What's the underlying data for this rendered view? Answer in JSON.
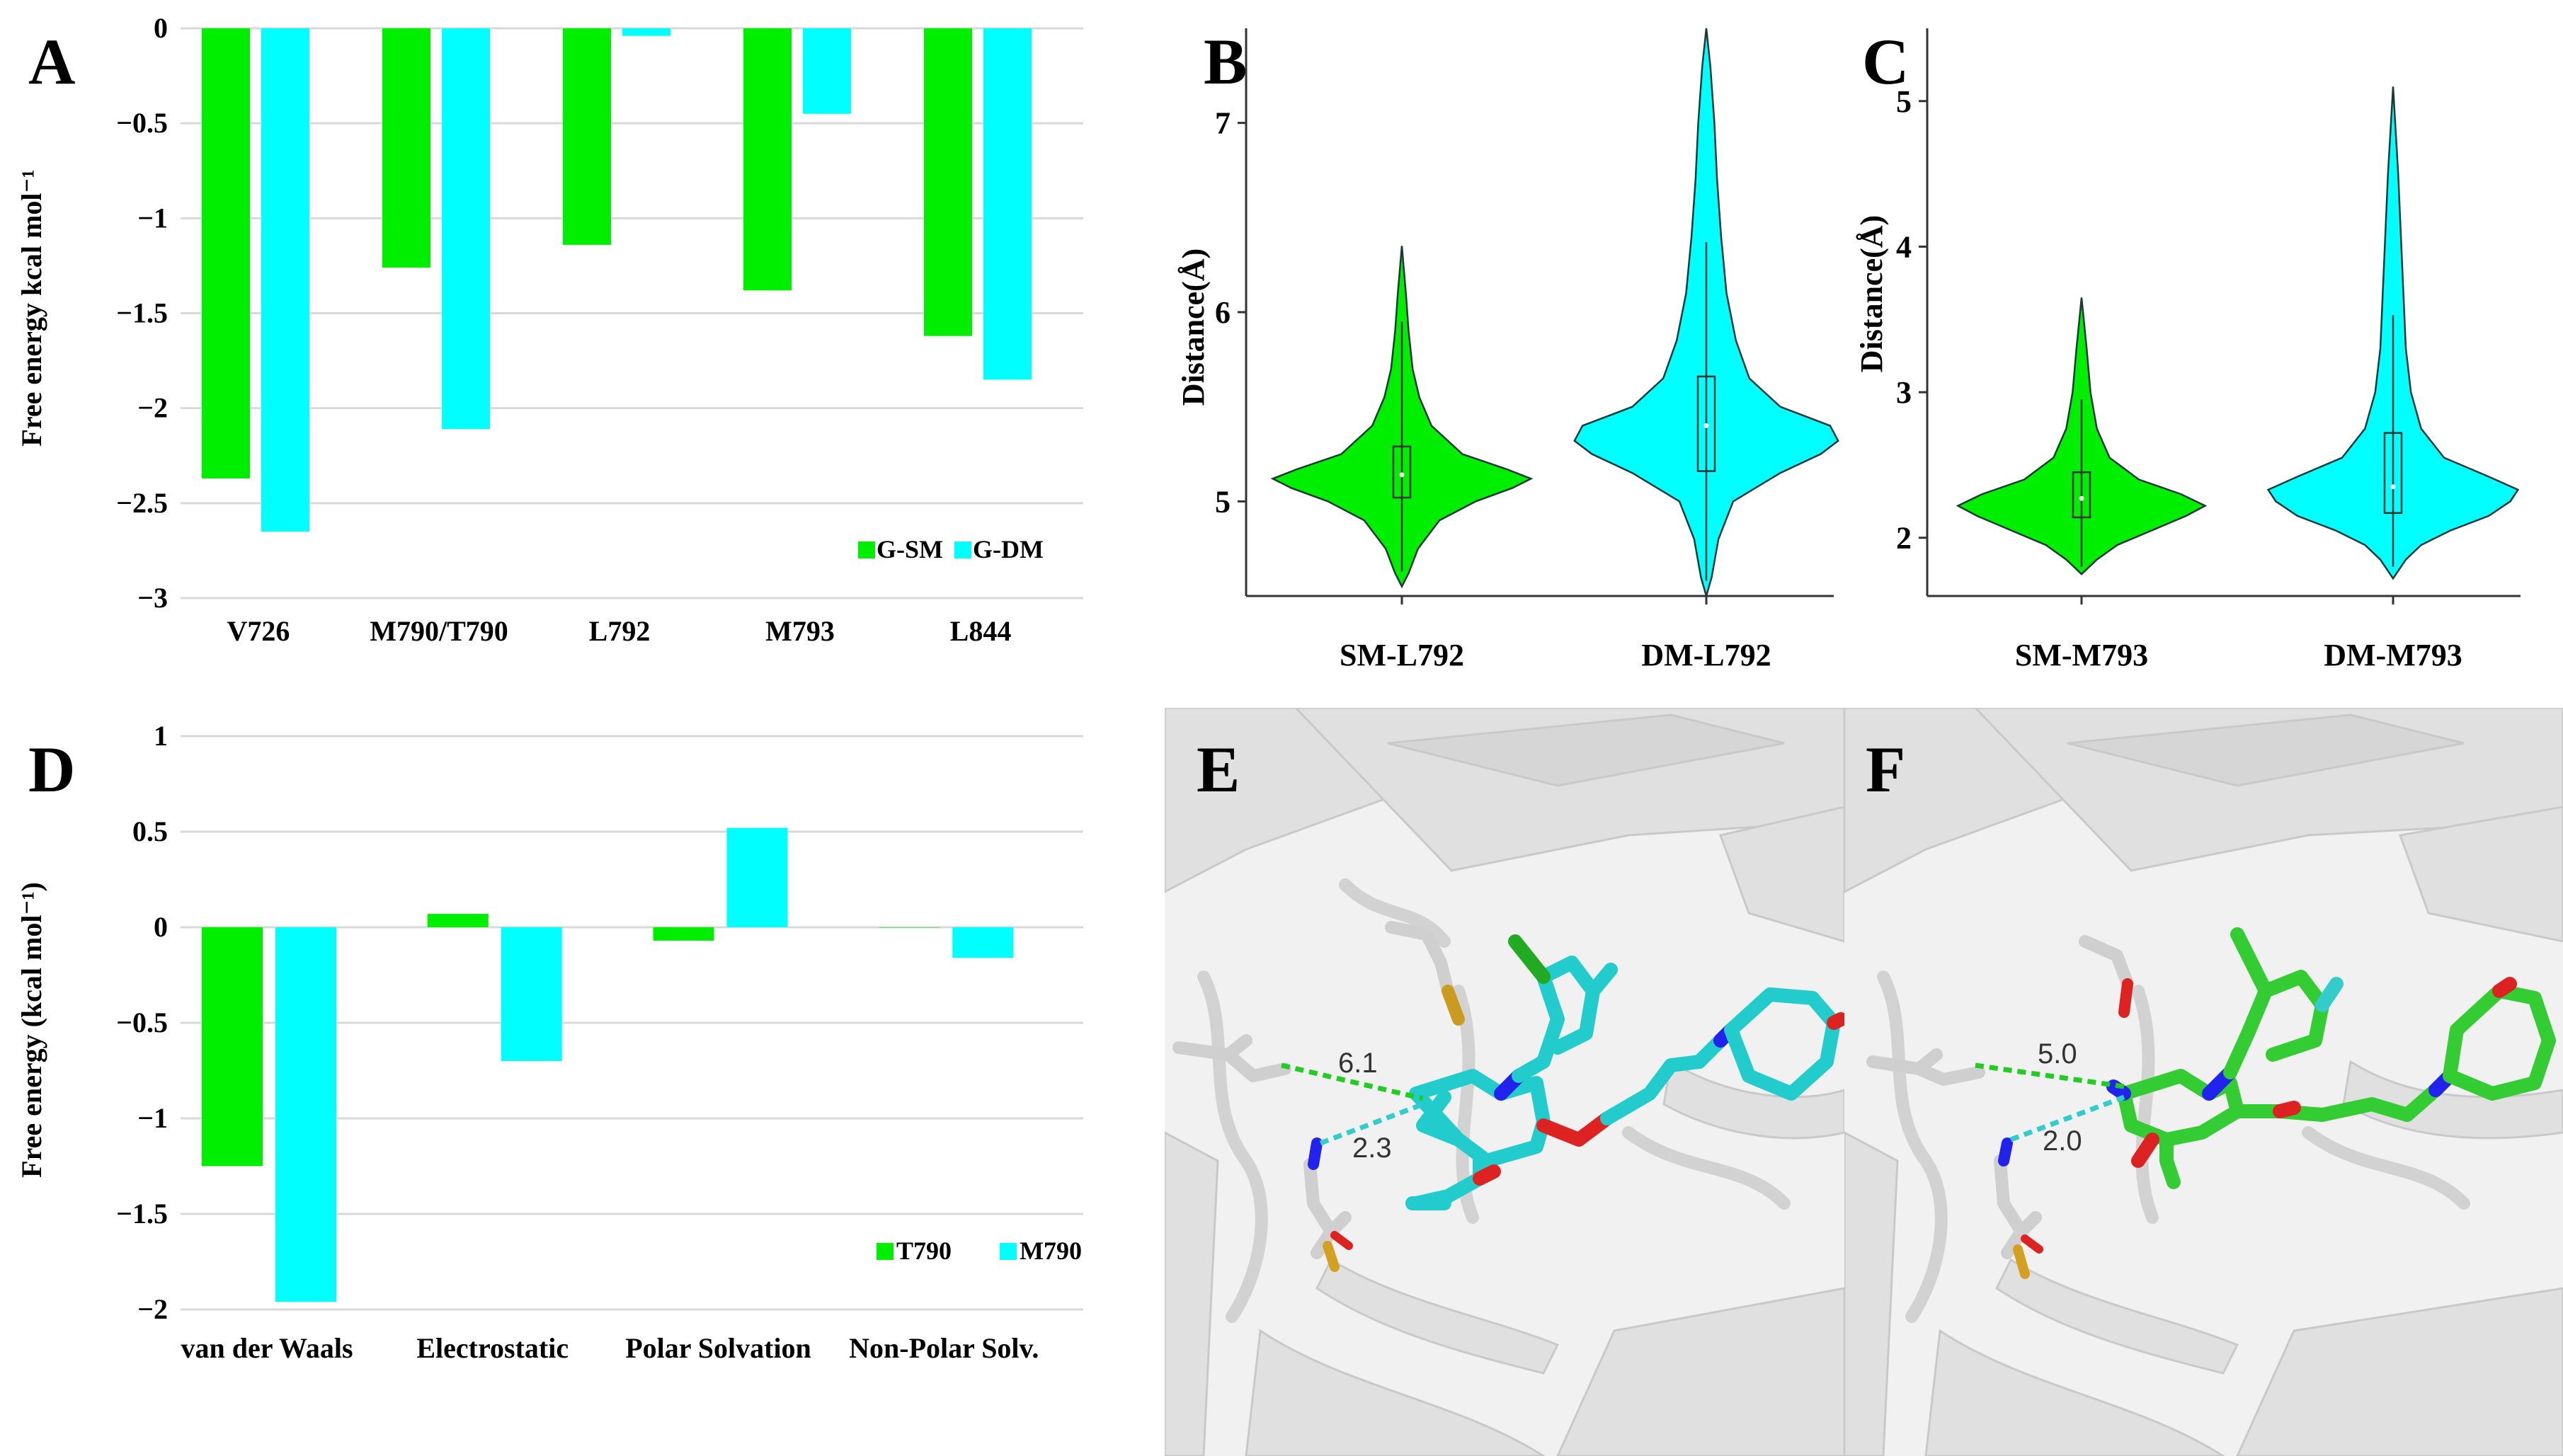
{
  "colors": {
    "green": "#00ee00",
    "cyan": "#00ffff",
    "axis": "#333333",
    "white_ribbon": "#e2e2e2"
  },
  "panel_letters": {
    "a": "A",
    "b": "B",
    "c": "C",
    "d": "D",
    "e": "E",
    "f": "F"
  },
  "chart_data": [
    {
      "panel": "A",
      "type": "bar",
      "ylabel": "Free energy kcal mol⁻¹",
      "ylim": [
        -3,
        0
      ],
      "yticks": [
        0,
        -0.5,
        -1,
        -1.5,
        -2,
        -2.5,
        -3
      ],
      "ytick_labels": [
        "0",
        "−0.5",
        "−1",
        "−1.5",
        "−2",
        "−2.5",
        "−3"
      ],
      "categories": [
        "V726",
        "M790/T790",
        "L792",
        "M793",
        "L844"
      ],
      "series": [
        {
          "name": "G-SM",
          "color": "#00ee00",
          "values": [
            -2.37,
            -1.26,
            -1.14,
            -1.38,
            -1.62
          ]
        },
        {
          "name": "G-DM",
          "color": "#00ffff",
          "values": [
            -2.65,
            -2.11,
            -0.04,
            -0.45,
            -1.85
          ]
        }
      ],
      "legend": "bottom-right"
    },
    {
      "panel": "B",
      "type": "violin",
      "ylabel": "Distance(Å)",
      "ylim": [
        4.5,
        7.5
      ],
      "yticks": [
        5,
        6,
        7
      ],
      "ytick_labels": [
        "5",
        "6",
        "7"
      ],
      "categories": [
        "SM-L792",
        "DM-L792"
      ],
      "violins": [
        {
          "name": "SM-L792",
          "color": "#00ee00",
          "min": 4.55,
          "max": 6.35,
          "q1": 5.02,
          "median": 5.14,
          "q3": 5.29,
          "whisker_low": 4.63,
          "whisker_high": 5.95,
          "profile": [
            [
              4.55,
              0.0
            ],
            [
              4.62,
              0.05
            ],
            [
              4.75,
              0.12
            ],
            [
              4.9,
              0.28
            ],
            [
              5.0,
              0.55
            ],
            [
              5.07,
              0.82
            ],
            [
              5.12,
              0.96
            ],
            [
              5.17,
              0.78
            ],
            [
              5.25,
              0.45
            ],
            [
              5.4,
              0.22
            ],
            [
              5.55,
              0.13
            ],
            [
              5.7,
              0.08
            ],
            [
              5.9,
              0.05
            ],
            [
              6.1,
              0.03
            ],
            [
              6.35,
              0.0
            ]
          ]
        },
        {
          "name": "DM-L792",
          "color": "#00ffff",
          "min": 4.5,
          "max": 7.5,
          "q1": 5.16,
          "median": 5.4,
          "q3": 5.66,
          "whisker_low": 4.58,
          "whisker_high": 6.37,
          "profile": [
            [
              4.5,
              0.0
            ],
            [
              4.6,
              0.04
            ],
            [
              4.8,
              0.09
            ],
            [
              5.0,
              0.2
            ],
            [
              5.15,
              0.55
            ],
            [
              5.25,
              0.85
            ],
            [
              5.32,
              0.98
            ],
            [
              5.4,
              0.92
            ],
            [
              5.5,
              0.55
            ],
            [
              5.65,
              0.32
            ],
            [
              5.85,
              0.22
            ],
            [
              6.1,
              0.15
            ],
            [
              6.4,
              0.11
            ],
            [
              6.7,
              0.08
            ],
            [
              7.0,
              0.06
            ],
            [
              7.3,
              0.03
            ],
            [
              7.5,
              0.0
            ]
          ]
        }
      ]
    },
    {
      "panel": "C",
      "type": "violin",
      "ylabel": "Distance(Å)",
      "ylim": [
        1.6,
        5.5
      ],
      "yticks": [
        2,
        3,
        4,
        5
      ],
      "ytick_labels": [
        "2",
        "3",
        "4",
        "5"
      ],
      "categories": [
        "SM-M793",
        "DM-M793"
      ],
      "violins": [
        {
          "name": "SM-M793",
          "color": "#00ee00",
          "min": 1.75,
          "max": 3.65,
          "q1": 2.14,
          "median": 2.27,
          "q3": 2.45,
          "whisker_low": 1.8,
          "whisker_high": 2.95,
          "profile": [
            [
              1.75,
              0.0
            ],
            [
              1.85,
              0.12
            ],
            [
              1.95,
              0.28
            ],
            [
              2.05,
              0.55
            ],
            [
              2.15,
              0.82
            ],
            [
              2.22,
              0.97
            ],
            [
              2.3,
              0.78
            ],
            [
              2.4,
              0.45
            ],
            [
              2.55,
              0.22
            ],
            [
              2.75,
              0.12
            ],
            [
              3.0,
              0.07
            ],
            [
              3.3,
              0.04
            ],
            [
              3.65,
              0.0
            ]
          ]
        },
        {
          "name": "DM-M793",
          "color": "#00ffff",
          "min": 1.72,
          "max": 5.1,
          "q1": 2.17,
          "median": 2.35,
          "q3": 2.72,
          "whisker_low": 1.8,
          "whisker_high": 3.53,
          "profile": [
            [
              1.72,
              0.0
            ],
            [
              1.85,
              0.1
            ],
            [
              1.95,
              0.22
            ],
            [
              2.05,
              0.45
            ],
            [
              2.15,
              0.75
            ],
            [
              2.25,
              0.92
            ],
            [
              2.33,
              0.98
            ],
            [
              2.42,
              0.75
            ],
            [
              2.55,
              0.4
            ],
            [
              2.75,
              0.22
            ],
            [
              3.0,
              0.14
            ],
            [
              3.3,
              0.1
            ],
            [
              3.7,
              0.08
            ],
            [
              4.1,
              0.06
            ],
            [
              4.5,
              0.04
            ],
            [
              4.8,
              0.02
            ],
            [
              5.1,
              0.0
            ]
          ]
        }
      ]
    },
    {
      "panel": "D",
      "type": "bar",
      "ylabel": "Free energy (kcal mol⁻¹)",
      "ylim": [
        -2,
        1
      ],
      "yticks": [
        1,
        0.5,
        0,
        -0.5,
        -1,
        -1.5,
        -2
      ],
      "ytick_labels": [
        "1",
        "0.5",
        "0",
        "−0.5",
        "−1",
        "−1.5",
        "−2"
      ],
      "categories": [
        "van der Waals",
        "Electrostatic",
        "Polar Solvation",
        "Non-Polar Solv."
      ],
      "series": [
        {
          "name": "T790",
          "color": "#00ee00",
          "values": [
            -1.25,
            0.07,
            -0.07,
            0
          ]
        },
        {
          "name": "M790",
          "color": "#00ffff",
          "values": [
            -1.96,
            -0.7,
            0.52,
            -0.16
          ]
        }
      ],
      "legend": "bottom-right"
    }
  ],
  "molecule_panels": {
    "E": {
      "distances": [
        "6.1",
        "2.3"
      ]
    },
    "F": {
      "distances": [
        "5.0",
        "2.0"
      ]
    }
  }
}
